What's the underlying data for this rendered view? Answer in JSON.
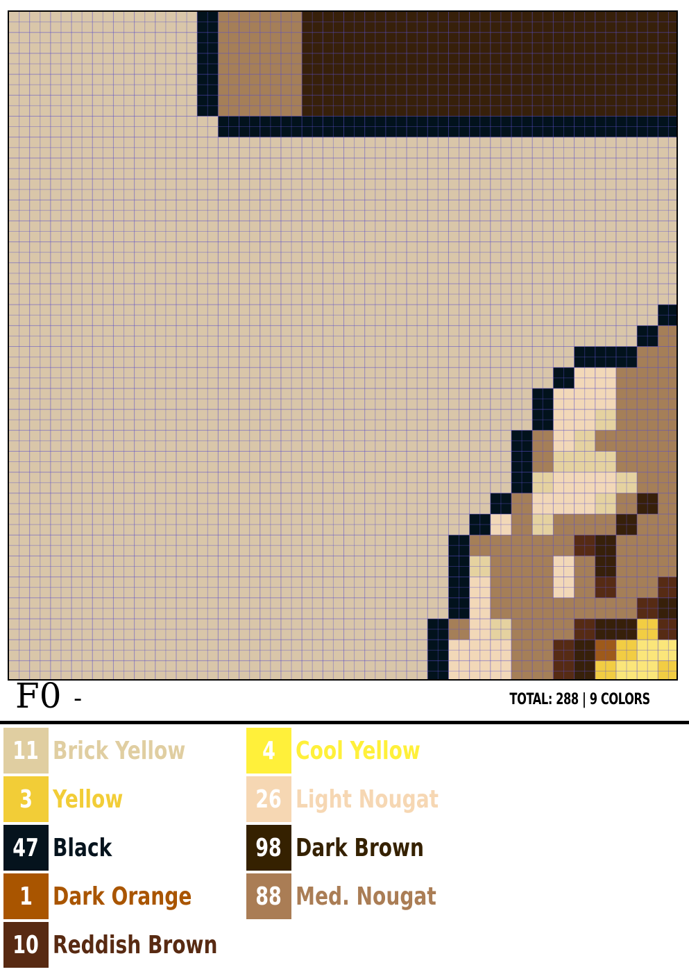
{
  "section": {
    "title": "F0",
    "dash": "-"
  },
  "summary": {
    "total_text": "TOTAL: 288  |  9 COLORS"
  },
  "palette": {
    "A": "#d9c6a9",
    "K": "#02121c",
    "N": "#a57f58",
    "D": "#37200a",
    "L": "#f2d8b8",
    "B": "#e5d2a0",
    "R": "#562b14",
    "O": "#9e5a1a",
    "Y": "#f2cd43",
    "C": "#fbe67a"
  },
  "legend": [
    {
      "count": "11",
      "name": "Brick Yellow",
      "color": "#e0cea1"
    },
    {
      "count": "3",
      "name": "Yellow",
      "color": "#f2cd37"
    },
    {
      "count": "47",
      "name": "Black",
      "color": "#05131d"
    },
    {
      "count": "1",
      "name": "Dark Orange",
      "color": "#a95500"
    },
    {
      "count": "10",
      "name": "Reddish Brown",
      "color": "#582a12"
    },
    {
      "count": "4",
      "name": "Cool Yellow",
      "color": "#fff03a"
    },
    {
      "count": "26",
      "name": "Light Nougat",
      "color": "#f6d7b3"
    },
    {
      "count": "98",
      "name": "Dark Brown",
      "color": "#352100"
    },
    {
      "count": "88",
      "name": "Med. Nougat",
      "color": "#aa7d55"
    }
  ],
  "mosaic": {
    "rows": [
      "AAAAAAAAAKNNNNDDDDDDDDDDDDDDDDDD",
      "AAAAAAAAAKNNNNDDDDDDDDDDDDDDDDDD",
      "AAAAAAAAAKNNNNDDDDDDDDDDDDDDDDDD",
      "AAAAAAAAAKNNNNDDDDDDDDDDDDDDDDDD",
      "AAAAAAAAAKNNNNDDDDDDDDDDDDDDDDDD",
      "AAAAAAAAAAKKKKKKKKKKKKKKKKKKKKKK",
      "AAAAAAAAAAAAAAAAAAAAAAAAAAAAAAAA",
      "AAAAAAAAAAAAAAAAAAAAAAAAAAAAAAAA",
      "AAAAAAAAAAAAAAAAAAAAAAAAAAAAAAAA",
      "AAAAAAAAAAAAAAAAAAAAAAAAAAAAAAAA",
      "AAAAAAAAAAAAAAAAAAAAAAAAAAAAAAAA",
      "AAAAAAAAAAAAAAAAAAAAAAAAAAAAAAAA",
      "AAAAAAAAAAAAAAAAAAAAAAAAAAAAAAAA",
      "AAAAAAAAAAAAAAAAAAAAAAAAAAAAAAAA",
      "AAAAAAAAAAAAAAAAAAAAAAAAAAAAAAAK",
      "AAAAAAAAAAAAAAAAAAAAAAAAAAAAAAKN",
      "AAAAAAAAAAAAAAAAAAAAAAAAAAAKKKNN",
      "AAAAAAAAAAAAAAAAAAAAAAAAAAKLLNNN",
      "AAAAAAAAAAAAAAAAAAAAAAAAAKLLLNNN",
      "AAAAAAAAAAAAAAAAAAAAAAAAAKLLBNNN",
      "AAAAAAAAAAAAAAAAAAAAAAAAKNLBNNNN",
      "AAAAAAAAAAAAAAAAAAAAAAAAKNBBBNNN",
      "AAAAAAAAAAAAAAAAAAAAAAAAKBLLLBNN",
      "AAAAAAAAAAAAAAAAAAAAAAAKNLLLBNDN",
      "AAAAAAAAAAAAAAAAAAAAAAKLNBNNNDNN",
      "AAAAAAAAAAAAAAAAAAAAAKNNNNNRDNNN",
      "AAAAAAAAAAAAAAAAAAAAAKBNNNLNDNNN",
      "AAAAAAAAAAAAAAAAAAAAAKLNNNLNRNNR",
      "AAAAAAAAAAAAAAAAAAAAAKLNNNNNNNRD",
      "AAAAAAAAAAAAAAAAAAAAKNLBNNNRDDYR",
      "AAAAAAAAAAAAAAAAAAAAKLLLNNRDOYCC",
      "AAAAAAAAAAAAAAAAAAAAKLLLNNRDYCCY"
    ]
  }
}
